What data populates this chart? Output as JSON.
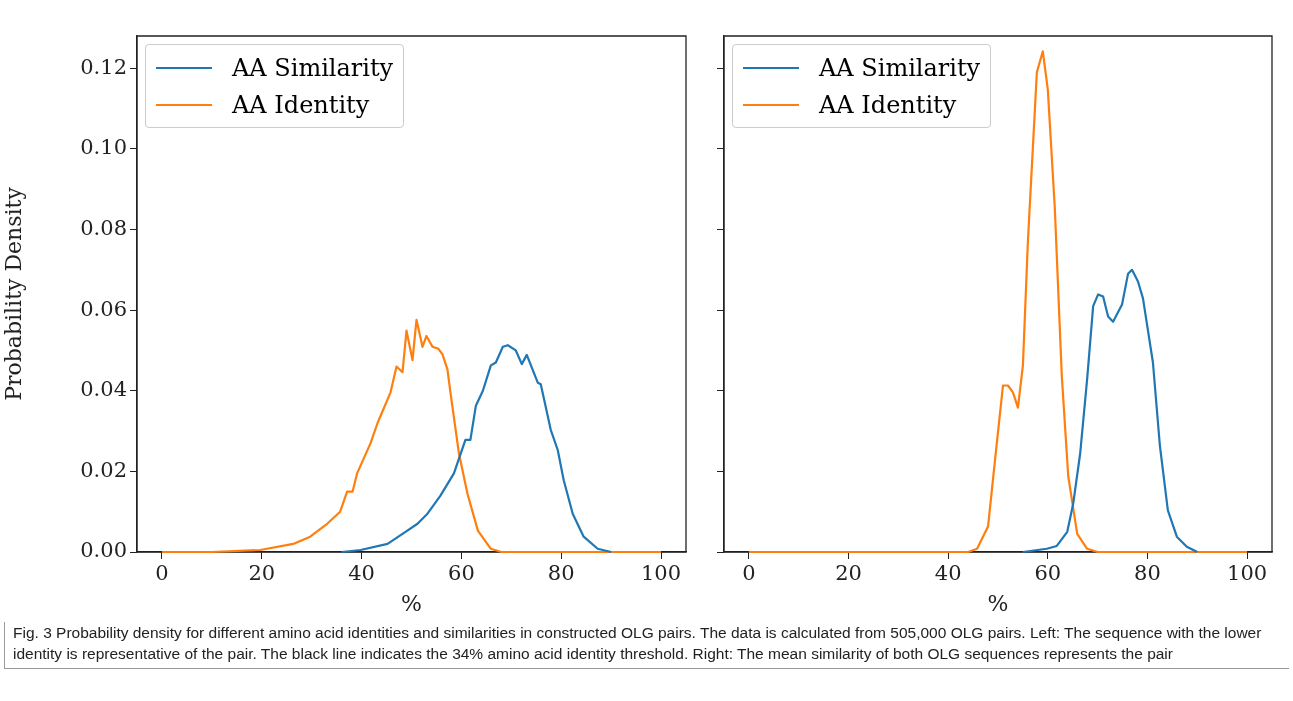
{
  "chart_data": [
    {
      "type": "line",
      "xlabel": "%",
      "ylabel": "Probability Density",
      "xlim": [
        -5,
        105
      ],
      "xticks": [
        0,
        20,
        40,
        60,
        80,
        100
      ],
      "ylim": [
        0,
        0.128
      ],
      "yticks": [
        {
          "value": 0,
          "label": "0.00"
        },
        {
          "value": 0.02,
          "label": "0.02"
        },
        {
          "value": 0.04,
          "label": "0.04"
        },
        {
          "value": 0.06,
          "label": "0.06"
        },
        {
          "value": 0.08,
          "label": "0.08"
        },
        {
          "value": 0.1,
          "label": "0.10"
        },
        {
          "value": 0.12,
          "label": "0.12"
        }
      ],
      "legend": "top left",
      "series": [
        {
          "name": "AA Similarity",
          "color": "#1f77b4",
          "x": [
            36,
            39.8,
            45.2,
            48.8,
            51.2,
            53.2,
            55.8,
            58.5,
            60.8,
            61.8,
            62.9,
            64.3,
            65.9,
            66.9,
            68.3,
            69.3,
            70.9,
            72.1,
            73.1,
            75.3,
            75.9,
            77.9,
            79.3,
            80.5,
            82.3,
            84.5,
            87.3,
            90
          ],
          "values": [
            0,
            0.0005,
            0.002,
            0.005,
            0.007,
            0.0095,
            0.014,
            0.0195,
            0.0278,
            0.0278,
            0.0363,
            0.04,
            0.0463,
            0.047,
            0.0509,
            0.0513,
            0.05,
            0.0466,
            0.0489,
            0.042,
            0.0416,
            0.0303,
            0.0253,
            0.0178,
            0.0095,
            0.0038,
            0.0008,
            0
          ]
        },
        {
          "name": "AA Identity",
          "color": "#ff7f0e",
          "x": [
            0,
            10,
            19.7,
            26.3,
            29.7,
            33.1,
            35.7,
            37.1,
            38.2,
            39.1,
            41.8,
            43.2,
            45.8,
            47,
            48.2,
            49,
            50.2,
            51,
            52.2,
            53,
            54.2,
            55.4,
            56.2,
            57.2,
            57.8,
            59.5,
            61.2,
            63.3,
            65.9,
            68,
            80,
            100
          ],
          "values": [
            0,
            0,
            0.0005,
            0.002,
            0.0038,
            0.007,
            0.01,
            0.015,
            0.015,
            0.0195,
            0.027,
            0.032,
            0.0396,
            0.046,
            0.0446,
            0.0549,
            0.0476,
            0.0576,
            0.0509,
            0.0536,
            0.0509,
            0.0504,
            0.049,
            0.0453,
            0.0396,
            0.0245,
            0.0145,
            0.0053,
            0.0008,
            0,
            0,
            0
          ]
        }
      ],
      "annotations": [
        "Fig. 3  Probability density for different amino acid identities and similarities in constructed OLG pairs. The data is calculated from 505,000 OLG pairs. Left: The sequence with the lower identity is representative of the pair. The black line indicates the 34% amino acid identity threshold. Right: The mean similarity of both OLG sequences represents the pair"
      ]
    },
    {
      "type": "line",
      "xlabel": "%",
      "xlim": [
        -5,
        105
      ],
      "xticks": [
        0,
        20,
        40,
        60,
        80,
        100
      ],
      "ylim": [
        0,
        0.128
      ],
      "yticks": [
        {
          "value": 0,
          "label": null
        },
        {
          "value": 0.02,
          "label": null
        },
        {
          "value": 0.04,
          "label": null
        },
        {
          "value": 0.06,
          "label": null
        },
        {
          "value": 0.08,
          "label": null
        },
        {
          "value": 0.1,
          "label": null
        },
        {
          "value": 0.12,
          "label": null
        }
      ],
      "tick_labels": "x",
      "legend": "top left",
      "series": [
        {
          "name": "AA Similarity",
          "color": "#1f77b4",
          "x": [
            55,
            59.8,
            61.8,
            63.9,
            65.1,
            66.5,
            67.9,
            69.1,
            70.1,
            71.1,
            72.1,
            73.1,
            74.9,
            76.1,
            76.9,
            78.1,
            79.1,
            81.1,
            82.5,
            84.1,
            85.9,
            87.9,
            90
          ],
          "values": [
            0,
            0.0008,
            0.0015,
            0.005,
            0.012,
            0.0245,
            0.043,
            0.061,
            0.0639,
            0.0634,
            0.0584,
            0.0571,
            0.0614,
            0.069,
            0.07,
            0.0671,
            0.0629,
            0.047,
            0.0263,
            0.0103,
            0.0038,
            0.0013,
            0
          ]
        },
        {
          "name": "AA Identity",
          "color": "#ff7f0e",
          "x": [
            0,
            20,
            40,
            44,
            45.8,
            48,
            49.4,
            51,
            52,
            53,
            54,
            55,
            56,
            57.8,
            59,
            60,
            61.4,
            62.8,
            64.1,
            65.9,
            67.9,
            70,
            80,
            100
          ],
          "values": [
            0,
            0,
            0,
            0,
            0.0008,
            0.0063,
            0.0228,
            0.0413,
            0.0413,
            0.0396,
            0.0358,
            0.0463,
            0.077,
            0.119,
            0.1242,
            0.1147,
            0.0854,
            0.0438,
            0.0188,
            0.0045,
            0.0008,
            0,
            0,
            0
          ]
        }
      ]
    }
  ]
}
